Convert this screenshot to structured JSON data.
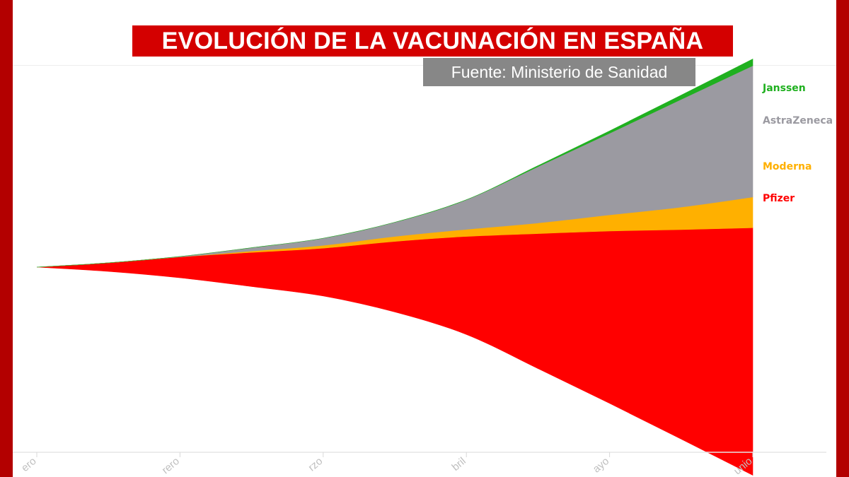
{
  "header": {
    "title": "EVOLUCIÓN DE LA VACUNACIÓN EN ESPAÑA",
    "source": "Fuente: Ministerio de Sanidad"
  },
  "colors": {
    "frame": "#b30000",
    "title_bg": "#d40000",
    "source_bg": "#878787",
    "axis": "#e6e6e6",
    "Pfizer": "#ff0000",
    "Moderna": "#ffb000",
    "AstraZeneca": "#9b9aa1",
    "Janssen": "#1fb01f"
  },
  "chart_data": {
    "type": "area",
    "layout": "streamgraph",
    "x_ticks": [
      "Enero",
      "Febrero",
      "Marzo",
      "Abril",
      "Mayo",
      "Junio"
    ],
    "x_tick_labels_visible": [
      "ero",
      "rero",
      "rzo",
      "bril",
      "ayo",
      "unio"
    ],
    "x": [
      0,
      0.5,
      1,
      1.5,
      2,
      2.5,
      3,
      3.5,
      4,
      4.5,
      5
    ],
    "series": [
      {
        "name": "Pfizer",
        "values": [
          0,
          36,
          88,
          144,
          202,
          298,
          414,
          570,
          728,
          885,
          1045
        ]
      },
      {
        "name": "Moderna",
        "values": [
          0,
          0,
          0,
          6,
          12,
          21,
          30,
          45,
          68,
          95,
          130
        ]
      },
      {
        "name": "AstraZeneca",
        "values": [
          0,
          0,
          2,
          14,
          30,
          60,
          125,
          238,
          345,
          455,
          555
        ]
      },
      {
        "name": "Janssen",
        "values": [
          0,
          0,
          0,
          0,
          0,
          0,
          0,
          4,
          10,
          18,
          28
        ]
      }
    ],
    "value_unit": "relative (axis not printed)",
    "legend": "right, inline at series ends",
    "grid": false
  }
}
